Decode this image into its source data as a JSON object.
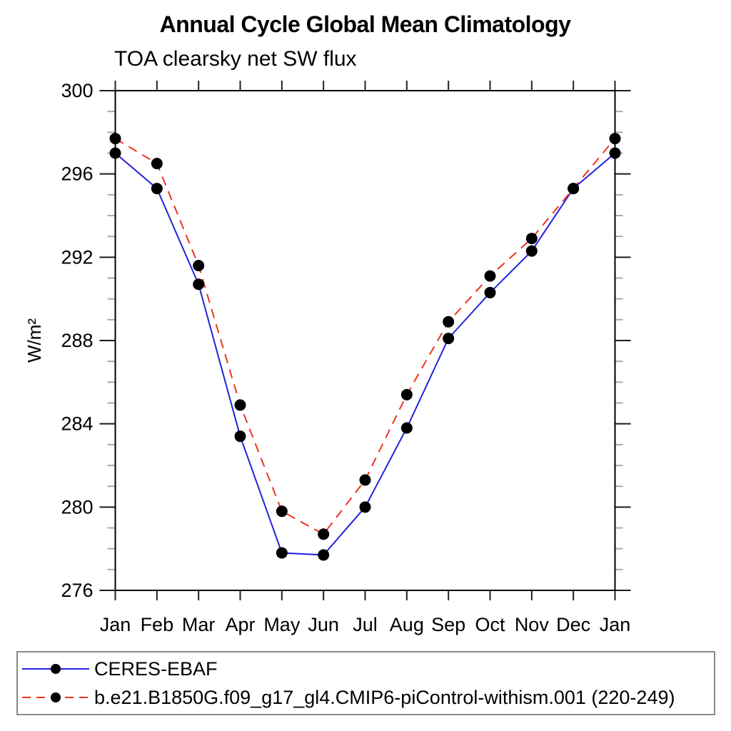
{
  "title": "Annual Cycle Global Mean Climatology",
  "subtitle": "TOA clearsky net SW flux",
  "y_axis_label": "W/m²",
  "colors": {
    "obs_line": "#2222dd",
    "model_line": "#ee3322",
    "marker": "#000000",
    "frame": "#000000",
    "minor_tick": "#aaaaaa",
    "major_tick": "#1a1a1a",
    "month_tick": "#222222",
    "legend_border": "#8a8a8a"
  },
  "chart_data": {
    "type": "line",
    "title": "Annual Cycle Global Mean Climatology",
    "subtitle": "TOA clearsky net SW flux",
    "xlabel": "",
    "ylabel": "W/m²",
    "categories": [
      "Jan",
      "Feb",
      "Mar",
      "Apr",
      "May",
      "Jun",
      "Jul",
      "Aug",
      "Sep",
      "Oct",
      "Nov",
      "Dec",
      "Jan"
    ],
    "ylim": [
      276,
      300
    ],
    "yticks_major": [
      276,
      280,
      284,
      288,
      292,
      296,
      300
    ],
    "y_major_step": 4,
    "y_minor_step": 1,
    "grid": false,
    "legend_position": "bottom",
    "series": [
      {
        "name": "CERES-EBAF",
        "color": "#2222dd",
        "line_style": "solid",
        "marker": "circle",
        "marker_color": "#000000",
        "values": [
          297.0,
          295.3,
          290.7,
          283.4,
          277.8,
          277.7,
          280.0,
          283.8,
          288.1,
          290.3,
          292.3,
          295.3,
          297.0
        ]
      },
      {
        "name": "b.e21.B1850G.f09_g17_gl4.CMIP6-piControl-withism.001 (220-249)",
        "color": "#ee3322",
        "line_style": "dashed",
        "marker": "circle",
        "marker_color": "#000000",
        "values": [
          297.7,
          296.5,
          291.6,
          284.9,
          279.8,
          278.7,
          281.3,
          285.4,
          288.9,
          291.1,
          292.9,
          295.3,
          297.7
        ]
      }
    ]
  }
}
